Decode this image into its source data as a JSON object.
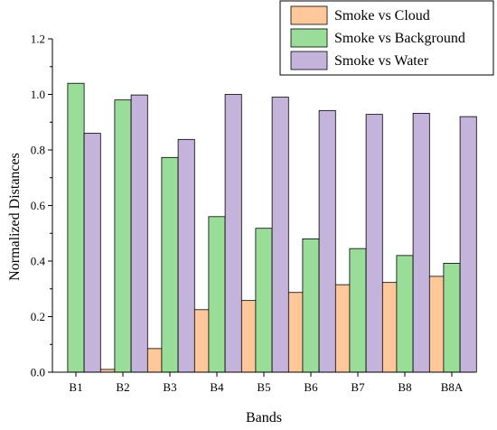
{
  "chart_data": {
    "type": "bar",
    "xlabel": "Bands",
    "ylabel": "Normalized Distances",
    "categories": [
      "B1",
      "B2",
      "B3",
      "B4",
      "B5",
      "B6",
      "B7",
      "B8",
      "B8A"
    ],
    "ylim": [
      0,
      1.2
    ],
    "yticks": [
      "0.0",
      "0.2",
      "0.4",
      "0.6",
      "0.8",
      "1.0",
      "1.2"
    ],
    "legend_position": "top-right",
    "grid": false,
    "series": [
      {
        "name": "Smoke vs Cloud",
        "color": "#FFC89A",
        "values": [
          0.0,
          0.01,
          0.085,
          0.225,
          0.258,
          0.287,
          0.315,
          0.323,
          0.345
        ]
      },
      {
        "name": "Smoke vs Background",
        "color": "#99DD99",
        "values": [
          1.04,
          0.98,
          0.773,
          0.56,
          0.518,
          0.48,
          0.445,
          0.42,
          0.392
        ]
      },
      {
        "name": "Smoke vs Water",
        "color": "#C4B4DC",
        "values": [
          0.86,
          0.998,
          0.838,
          1.0,
          0.99,
          0.942,
          0.928,
          0.932,
          0.92
        ]
      }
    ]
  }
}
